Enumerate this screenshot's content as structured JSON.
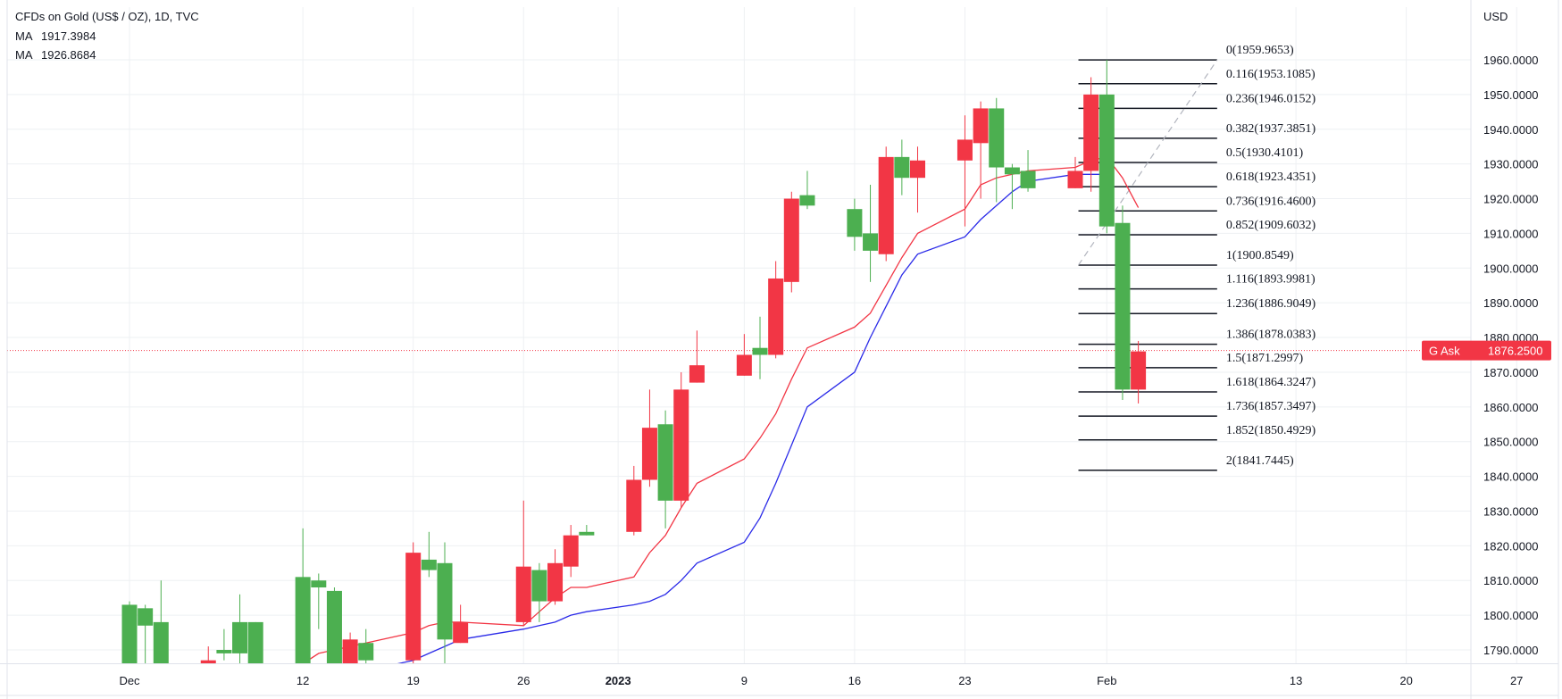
{
  "header": {
    "title": "CFDs on Gold (US$ / OZ), 1D, TVC",
    "ma1_label": "MA",
    "ma1_value": "1917.3984",
    "ma2_label": "MA",
    "ma2_value": "1926.8684",
    "currency": "USD"
  },
  "colors": {
    "up": "#4caf50",
    "down": "#f23645",
    "ma1": "#f23645",
    "ma2": "#2b2be8",
    "fib": "#131722",
    "ask_line": "#f23645",
    "grid": "#eef0f3"
  },
  "ask": {
    "label": "G Ask",
    "value": "1876.2500",
    "price": 1876.25
  },
  "chart_data": {
    "type": "candlestick",
    "y_ticks": [
      "1960.0000",
      "1950.0000",
      "1940.0000",
      "1930.0000",
      "1920.0000",
      "1910.0000",
      "1900.0000",
      "1890.0000",
      "1880.0000",
      "1870.0000",
      "1860.0000",
      "1850.0000",
      "1840.0000",
      "1830.0000",
      "1820.0000",
      "1810.0000",
      "1800.0000",
      "1790.0000"
    ],
    "ylim": [
      1786,
      1967
    ],
    "x_ticks": [
      {
        "label": "Dec",
        "day": 1,
        "bold": false
      },
      {
        "label": "12",
        "day": 12,
        "bold": false
      },
      {
        "label": "19",
        "day": 19,
        "bold": false
      },
      {
        "label": "26",
        "day": 26,
        "bold": false
      },
      {
        "label": "2023",
        "day": 32,
        "bold": true
      },
      {
        "label": "9",
        "day": 40,
        "bold": false
      },
      {
        "label": "16",
        "day": 47,
        "bold": false
      },
      {
        "label": "23",
        "day": 54,
        "bold": false
      },
      {
        "label": "Feb",
        "day": 63,
        "bold": false
      },
      {
        "label": "13",
        "day": 75,
        "bold": false
      },
      {
        "label": "20",
        "day": 82,
        "bold": false
      },
      {
        "label": "27",
        "day": 89,
        "bold": false
      }
    ],
    "candles": [
      {
        "day": 1,
        "o": 1786,
        "h": 1804,
        "l": 1786,
        "c": 1803
      },
      {
        "day": 2,
        "o": 1797,
        "h": 1803,
        "l": 1786,
        "c": 1802
      },
      {
        "day": 3,
        "o": 1786,
        "h": 1810,
        "l": 1786,
        "c": 1798
      },
      {
        "day": 6,
        "o": 1787,
        "h": 1791,
        "l": 1786,
        "c": 1786
      },
      {
        "day": 7,
        "o": 1789,
        "h": 1796,
        "l": 1787,
        "c": 1790
      },
      {
        "day": 8,
        "o": 1789,
        "h": 1806,
        "l": 1786,
        "c": 1798
      },
      {
        "day": 9,
        "o": 1786,
        "h": 1798,
        "l": 1786,
        "c": 1798
      },
      {
        "day": 12,
        "o": 1786,
        "h": 1825,
        "l": 1786,
        "c": 1811
      },
      {
        "day": 13,
        "o": 1808,
        "h": 1812,
        "l": 1796,
        "c": 1810
      },
      {
        "day": 14,
        "o": 1786,
        "h": 1808,
        "l": 1786,
        "c": 1807
      },
      {
        "day": 15,
        "o": 1793,
        "h": 1795,
        "l": 1786,
        "c": 1786
      },
      {
        "day": 16,
        "o": 1787,
        "h": 1796,
        "l": 1786,
        "c": 1792
      },
      {
        "day": 19,
        "o": 1818,
        "h": 1821,
        "l": 1786,
        "c": 1787
      },
      {
        "day": 20,
        "o": 1813,
        "h": 1824,
        "l": 1811,
        "c": 1816
      },
      {
        "day": 21,
        "o": 1793,
        "h": 1821,
        "l": 1786,
        "c": 1815
      },
      {
        "day": 22,
        "o": 1798,
        "h": 1803,
        "l": 1792,
        "c": 1792
      },
      {
        "day": 26,
        "o": 1814,
        "h": 1833,
        "l": 1797,
        "c": 1798
      },
      {
        "day": 27,
        "o": 1804,
        "h": 1815,
        "l": 1798,
        "c": 1813
      },
      {
        "day": 28,
        "o": 1815,
        "h": 1819,
        "l": 1803,
        "c": 1804
      },
      {
        "day": 29,
        "o": 1823,
        "h": 1826,
        "l": 1811,
        "c": 1814
      },
      {
        "day": 30,
        "o": 1823,
        "h": 1826,
        "l": 1823,
        "c": 1824
      },
      {
        "day": 33,
        "o": 1839,
        "h": 1843,
        "l": 1823,
        "c": 1824
      },
      {
        "day": 34,
        "o": 1854,
        "h": 1865,
        "l": 1837,
        "c": 1839
      },
      {
        "day": 35,
        "o": 1833,
        "h": 1859,
        "l": 1825,
        "c": 1855
      },
      {
        "day": 36,
        "o": 1865,
        "h": 1870,
        "l": 1831,
        "c": 1833
      },
      {
        "day": 37,
        "o": 1872,
        "h": 1882,
        "l": 1867,
        "c": 1867
      },
      {
        "day": 40,
        "o": 1875,
        "h": 1881,
        "l": 1869,
        "c": 1869
      },
      {
        "day": 41,
        "o": 1875,
        "h": 1886,
        "l": 1868,
        "c": 1877
      },
      {
        "day": 42,
        "o": 1897,
        "h": 1902,
        "l": 1874,
        "c": 1875
      },
      {
        "day": 43,
        "o": 1920,
        "h": 1922,
        "l": 1893,
        "c": 1896
      },
      {
        "day": 44,
        "o": 1918,
        "h": 1928,
        "l": 1917,
        "c": 1921
      },
      {
        "day": 47,
        "o": 1909,
        "h": 1920,
        "l": 1905,
        "c": 1917
      },
      {
        "day": 48,
        "o": 1905,
        "h": 1924,
        "l": 1896,
        "c": 1910
      },
      {
        "day": 49,
        "o": 1932,
        "h": 1935,
        "l": 1902,
        "c": 1904
      },
      {
        "day": 50,
        "o": 1926,
        "h": 1937,
        "l": 1921,
        "c": 1932
      },
      {
        "day": 51,
        "o": 1931,
        "h": 1935,
        "l": 1916,
        "c": 1926
      },
      {
        "day": 54,
        "o": 1937,
        "h": 1944,
        "l": 1912,
        "c": 1931
      },
      {
        "day": 55,
        "o": 1946,
        "h": 1948,
        "l": 1920,
        "c": 1936
      },
      {
        "day": 56,
        "o": 1929,
        "h": 1949,
        "l": 1919,
        "c": 1946
      },
      {
        "day": 57,
        "o": 1927,
        "h": 1930,
        "l": 1917,
        "c": 1929
      },
      {
        "day": 58,
        "o": 1923,
        "h": 1934,
        "l": 1922,
        "c": 1928
      },
      {
        "day": 61,
        "o": 1928,
        "h": 1932,
        "l": 1923,
        "c": 1923
      },
      {
        "day": 62,
        "o": 1950,
        "h": 1955,
        "l": 1922,
        "c": 1928
      },
      {
        "day": 63,
        "o": 1912,
        "h": 1960,
        "l": 1910,
        "c": 1950
      },
      {
        "day": 64,
        "o": 1865,
        "h": 1918,
        "l": 1862,
        "c": 1913
      },
      {
        "day": 65,
        "o": 1876,
        "h": 1879,
        "l": 1861,
        "c": 1865
      }
    ],
    "series": [
      {
        "name": "MA",
        "values": [
          [
            12,
            1786
          ],
          [
            13,
            1789
          ],
          [
            14,
            1790
          ],
          [
            15,
            1791
          ],
          [
            16,
            1792
          ],
          [
            19,
            1795
          ],
          [
            20,
            1797
          ],
          [
            21,
            1798
          ],
          [
            22,
            1798
          ],
          [
            26,
            1797
          ],
          [
            27,
            1801
          ],
          [
            28,
            1805
          ],
          [
            29,
            1808
          ],
          [
            30,
            1808
          ],
          [
            33,
            1811
          ],
          [
            34,
            1818
          ],
          [
            35,
            1823
          ],
          [
            36,
            1831
          ],
          [
            37,
            1838
          ],
          [
            40,
            1845
          ],
          [
            41,
            1851
          ],
          [
            42,
            1858
          ],
          [
            43,
            1868
          ],
          [
            44,
            1877
          ],
          [
            47,
            1883
          ],
          [
            48,
            1887
          ],
          [
            49,
            1895
          ],
          [
            50,
            1903
          ],
          [
            51,
            1910
          ],
          [
            54,
            1917
          ],
          [
            55,
            1924
          ],
          [
            56,
            1926
          ],
          [
            57,
            1927
          ],
          [
            58,
            1928
          ],
          [
            61,
            1929
          ],
          [
            62,
            1931
          ],
          [
            63,
            1932
          ],
          [
            64,
            1926
          ],
          [
            65,
            1917.4
          ]
        ]
      },
      {
        "name": "MA",
        "values": [
          [
            18,
            1786
          ],
          [
            19,
            1787
          ],
          [
            20,
            1789
          ],
          [
            21,
            1791
          ],
          [
            22,
            1793
          ],
          [
            26,
            1796
          ],
          [
            27,
            1797
          ],
          [
            28,
            1798
          ],
          [
            29,
            1800
          ],
          [
            30,
            1801
          ],
          [
            33,
            1803
          ],
          [
            34,
            1804
          ],
          [
            35,
            1806
          ],
          [
            36,
            1810
          ],
          [
            37,
            1815
          ],
          [
            40,
            1821
          ],
          [
            41,
            1828
          ],
          [
            42,
            1838
          ],
          [
            43,
            1849
          ],
          [
            44,
            1860
          ],
          [
            47,
            1870
          ],
          [
            48,
            1880
          ],
          [
            49,
            1889
          ],
          [
            50,
            1898
          ],
          [
            51,
            1904
          ],
          [
            54,
            1909
          ],
          [
            55,
            1914
          ],
          [
            56,
            1918
          ],
          [
            57,
            1922
          ],
          [
            58,
            1925
          ],
          [
            61,
            1927
          ],
          [
            62,
            1927
          ],
          [
            63,
            1927
          ]
        ]
      }
    ],
    "fib_levels": [
      {
        "price": 1959.9653,
        "label": "0(1959.9653)"
      },
      {
        "price": 1953.1085,
        "label": "0.116(1953.1085)"
      },
      {
        "price": 1946.0152,
        "label": "0.236(1946.0152)"
      },
      {
        "price": 1937.3851,
        "label": "0.382(1937.3851)"
      },
      {
        "price": 1930.4101,
        "label": "0.5(1930.4101)"
      },
      {
        "price": 1923.4351,
        "label": "0.618(1923.4351)"
      },
      {
        "price": 1916.46,
        "label": "0.736(1916.4600)"
      },
      {
        "price": 1909.6032,
        "label": "0.852(1909.6032)"
      },
      {
        "price": 1900.8549,
        "label": "1(1900.8549)"
      },
      {
        "price": 1893.9981,
        "label": "1.116(1893.9981)"
      },
      {
        "price": 1886.9049,
        "label": "1.236(1886.9049)"
      },
      {
        "price": 1878.0383,
        "label": "1.386(1878.0383)"
      },
      {
        "price": 1871.2997,
        "label": "1.5(1871.2997)"
      },
      {
        "price": 1864.3247,
        "label": "1.618(1864.3247)"
      },
      {
        "price": 1857.3497,
        "label": "1.736(1857.3497)"
      },
      {
        "price": 1850.4929,
        "label": "1.852(1850.4929)"
      },
      {
        "price": 1841.7445,
        "label": "2(1841.7445)"
      }
    ],
    "fib_range": {
      "day_start": 61.2,
      "day_end": 70,
      "trend_from": [
        1900.8549,
        61.2
      ],
      "trend_to": [
        1959.9653,
        70
      ]
    }
  }
}
